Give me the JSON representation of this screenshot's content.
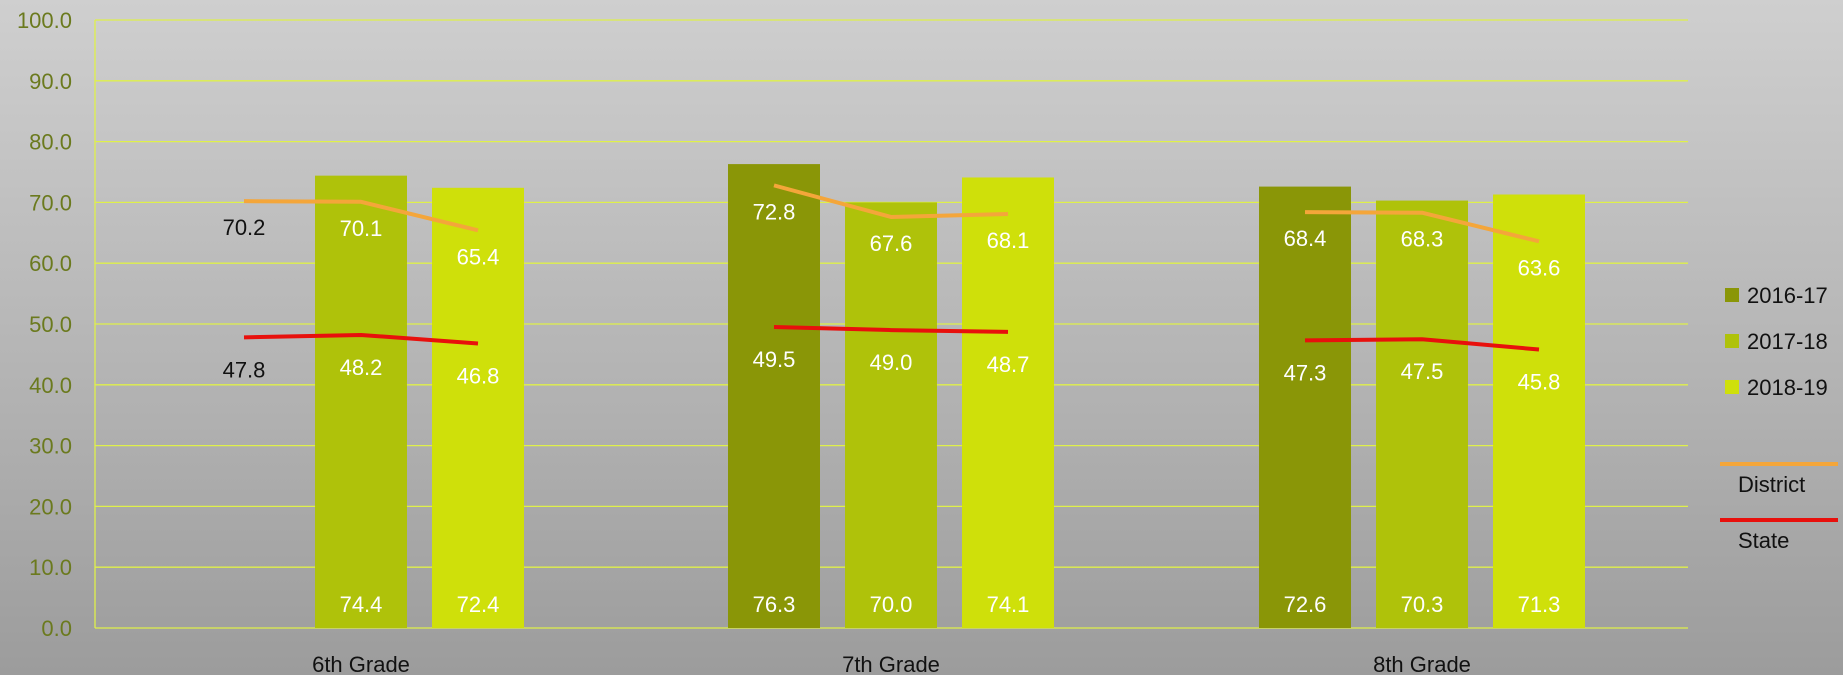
{
  "chart_data": {
    "type": "bar",
    "categories": [
      "6th Grade",
      "7th Grade",
      "8th Grade"
    ],
    "ylim": [
      0,
      100
    ],
    "yticks": [
      "0.0",
      "10.0",
      "20.0",
      "30.0",
      "40.0",
      "50.0",
      "60.0",
      "70.0",
      "80.0",
      "90.0",
      "100.0"
    ],
    "grid": true,
    "legend_position": "right",
    "series": [
      {
        "name": "2016-17",
        "color": "#8a9607",
        "values": [
          null,
          76.3,
          72.6
        ],
        "labels": [
          "",
          "76.3",
          "72.6"
        ]
      },
      {
        "name": "2017-18",
        "color": "#afc20a",
        "values": [
          74.4,
          70.0,
          70.3
        ],
        "labels": [
          "74.4",
          "70.0",
          "70.3"
        ]
      },
      {
        "name": "2018-19",
        "color": "#cfe00a",
        "values": [
          72.4,
          74.1,
          71.3
        ],
        "labels": [
          "72.4",
          "74.1",
          "71.3"
        ]
      }
    ],
    "lines": [
      {
        "name": "District",
        "color": "#f4a63a",
        "values": [
          [
            70.2,
            70.1,
            65.4
          ],
          [
            72.8,
            67.6,
            68.1
          ],
          [
            68.4,
            68.3,
            63.6
          ]
        ],
        "labels": [
          [
            "70.2",
            "70.1",
            "65.4"
          ],
          [
            "72.8",
            "67.6",
            "68.1"
          ],
          [
            "68.4",
            "68.3",
            "63.6"
          ]
        ]
      },
      {
        "name": "State",
        "color": "#e8100c",
        "values": [
          [
            47.8,
            48.2,
            46.8
          ],
          [
            49.5,
            49.0,
            48.7
          ],
          [
            47.3,
            47.5,
            45.8
          ]
        ],
        "labels": [
          [
            "47.8",
            "48.2",
            "46.8"
          ],
          [
            "49.5",
            "49.0",
            "48.7"
          ],
          [
            "47.3",
            "47.5",
            "45.8"
          ]
        ]
      }
    ]
  }
}
